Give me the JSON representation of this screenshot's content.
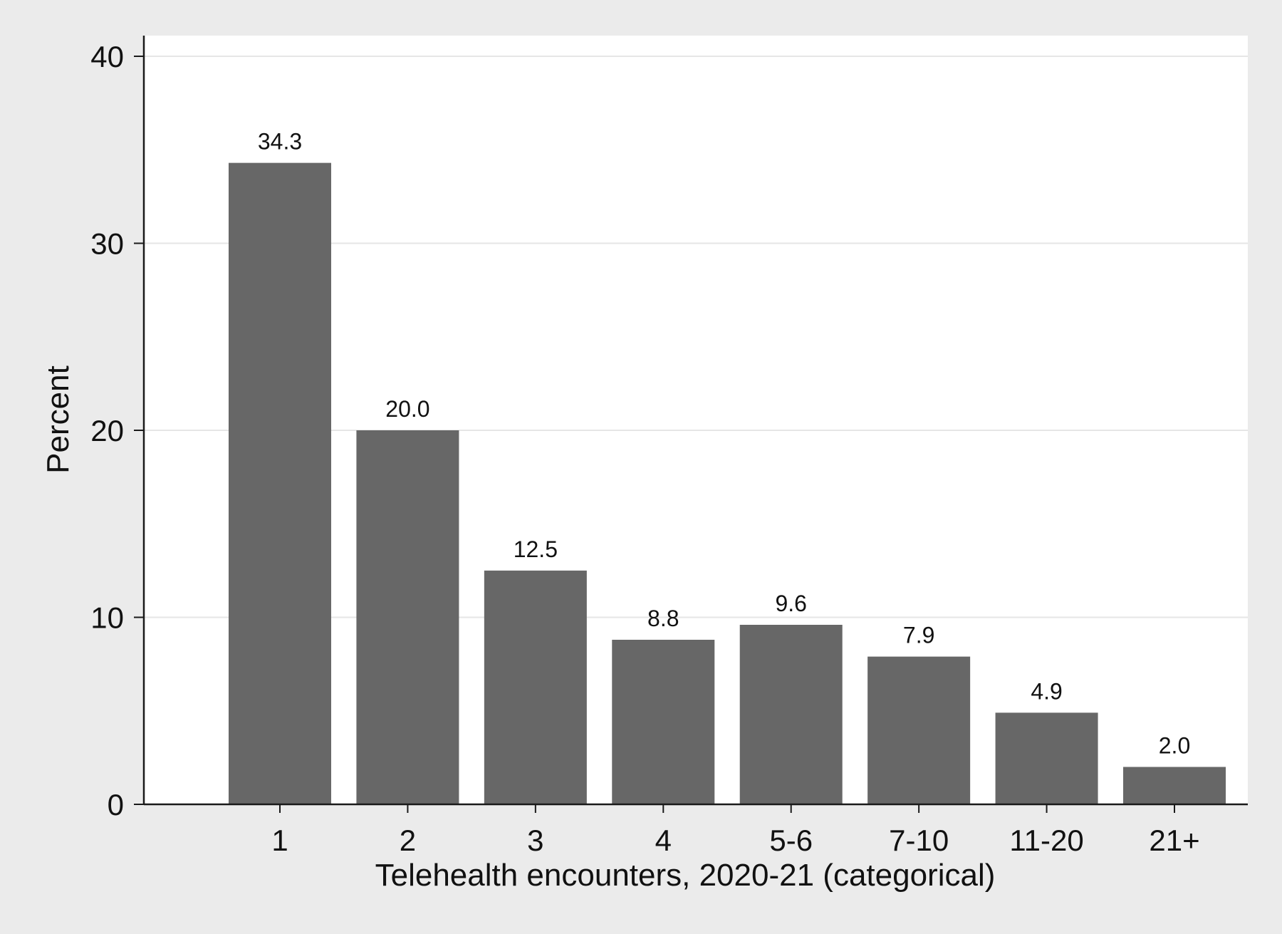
{
  "chart_data": {
    "type": "bar",
    "categories": [
      "1",
      "2",
      "3",
      "4",
      "5-6",
      "7-10",
      "11-20",
      "21+"
    ],
    "values": [
      34.3,
      20.0,
      12.5,
      8.8,
      9.6,
      7.9,
      4.9,
      2.0
    ],
    "data_labels": [
      "34.3",
      "20.0",
      "12.5",
      "8.8",
      "9.6",
      "7.9",
      "4.9",
      "2.0"
    ],
    "title": "",
    "xlabel": "Telehealth encounters, 2020-21 (categorical)",
    "ylabel": "Percent",
    "ylim": [
      0,
      40
    ],
    "yticks": [
      0,
      10,
      20,
      30,
      40
    ],
    "ytick_labels": [
      "0",
      "10",
      "20",
      "30",
      "40"
    ],
    "grid": true,
    "legend": "none",
    "colors": {
      "bar": "#676767",
      "outer_background": "#ebebeb",
      "plot_background": "#ffffff",
      "gridline": "#e6e6e6",
      "axis": "#1a1a1a"
    }
  }
}
